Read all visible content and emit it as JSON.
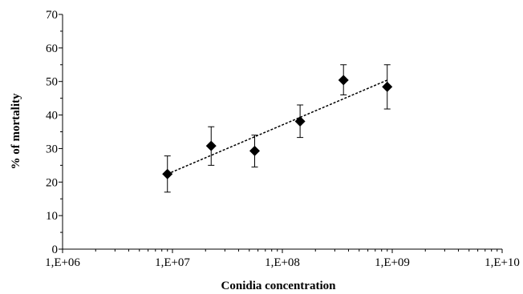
{
  "chart_data": {
    "type": "scatter",
    "title": "",
    "xlabel": "Conidia concentration",
    "ylabel": "% of mortality",
    "xscale": "log",
    "xlim": [
      1000000,
      10000000000
    ],
    "ylim": [
      0,
      70
    ],
    "x_ticks": [
      1000000,
      10000000,
      100000000,
      1000000000,
      10000000000
    ],
    "x_tick_labels": [
      "1,E+06",
      "1,E+07",
      "1,E+08",
      "1,E+09",
      "1,E+10"
    ],
    "y_ticks": [
      0,
      10,
      20,
      30,
      40,
      50,
      60,
      70
    ],
    "y_tick_labels": [
      "0",
      "10",
      "20",
      "30",
      "40",
      "50",
      "60",
      "70"
    ],
    "grid": false,
    "legend": "none",
    "marker": "diamond",
    "marker_color": "#000000",
    "series": [
      {
        "x": [
          9000000,
          22500000,
          56000000,
          145000000,
          360000000,
          900000000
        ],
        "y": [
          22.4,
          30.8,
          29.3,
          38.1,
          50.4,
          48.4
        ],
        "err_upper": [
          27.8,
          36.5,
          34.0,
          43.0,
          55.0,
          55.0
        ],
        "err_lower": [
          17.0,
          25.0,
          24.5,
          33.3,
          46.0,
          41.8
        ]
      }
    ],
    "trendline": {
      "style": "dashed",
      "color": "#000000",
      "from": [
        9000000,
        22.4
      ],
      "to": [
        900000000,
        50.4
      ]
    }
  }
}
